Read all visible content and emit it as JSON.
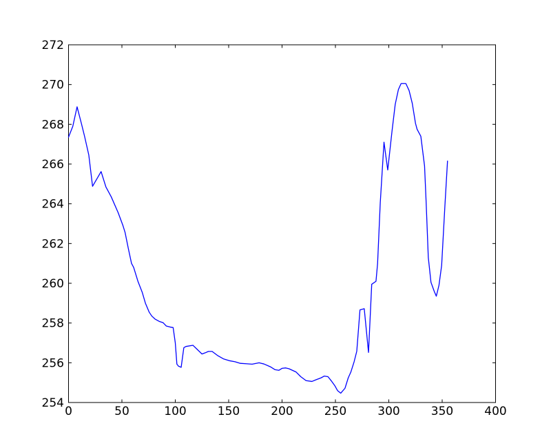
{
  "figure": {
    "background": "#ffffff",
    "frame_color": "#000000",
    "tick_color": "#000000",
    "label_color": "#000000"
  },
  "chart_data": {
    "type": "line",
    "title": "",
    "xlabel": "",
    "ylabel": "",
    "grid": false,
    "legend": null,
    "xlim": [
      0,
      400
    ],
    "ylim": [
      254,
      272
    ],
    "xticks": [
      0,
      50,
      100,
      150,
      200,
      250,
      300,
      350,
      400
    ],
    "yticks": [
      254,
      256,
      258,
      260,
      262,
      264,
      266,
      268,
      270,
      272
    ],
    "series": [
      {
        "name": "series-1",
        "color": "#0000ff",
        "points": [
          [
            0,
            267.35
          ],
          [
            4,
            267.9
          ],
          [
            8,
            268.88
          ],
          [
            12,
            268.05
          ],
          [
            15,
            267.4
          ],
          [
            19,
            266.45
          ],
          [
            22.5,
            264.88
          ],
          [
            30.5,
            265.62
          ],
          [
            35,
            264.85
          ],
          [
            40,
            264.35
          ],
          [
            46.5,
            263.55
          ],
          [
            51,
            262.9
          ],
          [
            53,
            262.55
          ],
          [
            56,
            261.75
          ],
          [
            59,
            261.0
          ],
          [
            61,
            260.8
          ],
          [
            65,
            260.1
          ],
          [
            69,
            259.55
          ],
          [
            72,
            259.0
          ],
          [
            75.5,
            258.55
          ],
          [
            78,
            258.35
          ],
          [
            81,
            258.2
          ],
          [
            85,
            258.08
          ],
          [
            88.5,
            258.02
          ],
          [
            91.5,
            257.85
          ],
          [
            95,
            257.8
          ],
          [
            98,
            257.77
          ],
          [
            100,
            257.0
          ],
          [
            101.5,
            255.93
          ],
          [
            103,
            255.83
          ],
          [
            105.5,
            255.77
          ],
          [
            108,
            256.76
          ],
          [
            110,
            256.82
          ],
          [
            116.5,
            256.88
          ],
          [
            120,
            256.7
          ],
          [
            125,
            256.44
          ],
          [
            128,
            256.5
          ],
          [
            131,
            256.57
          ],
          [
            134.5,
            256.57
          ],
          [
            140,
            256.35
          ],
          [
            145,
            256.2
          ],
          [
            151,
            256.1
          ],
          [
            156,
            256.05
          ],
          [
            161,
            255.97
          ],
          [
            166.5,
            255.95
          ],
          [
            172,
            255.93
          ],
          [
            178.5,
            256.0
          ],
          [
            183,
            255.94
          ],
          [
            189,
            255.8
          ],
          [
            193.5,
            255.65
          ],
          [
            197,
            255.62
          ],
          [
            200,
            255.72
          ],
          [
            203.5,
            255.74
          ],
          [
            206.5,
            255.7
          ],
          [
            213,
            255.54
          ],
          [
            217.5,
            255.3
          ],
          [
            222.5,
            255.1
          ],
          [
            228,
            255.06
          ],
          [
            232,
            255.15
          ],
          [
            236.5,
            255.24
          ],
          [
            239.5,
            255.33
          ],
          [
            243,
            255.3
          ],
          [
            246,
            255.1
          ],
          [
            249.5,
            254.84
          ],
          [
            252,
            254.6
          ],
          [
            255,
            254.47
          ],
          [
            259,
            254.72
          ],
          [
            262,
            255.24
          ],
          [
            264.5,
            255.54
          ],
          [
            267.5,
            256.05
          ],
          [
            270,
            256.58
          ],
          [
            273,
            258.66
          ],
          [
            277,
            258.72
          ],
          [
            281,
            256.52
          ],
          [
            284,
            259.95
          ],
          [
            288,
            260.1
          ],
          [
            289.5,
            261.0
          ],
          [
            292,
            264.05
          ],
          [
            295.5,
            267.1
          ],
          [
            299,
            265.7
          ],
          [
            303,
            267.65
          ],
          [
            306,
            269.0
          ],
          [
            309,
            269.75
          ],
          [
            311.5,
            270.05
          ],
          [
            316,
            270.05
          ],
          [
            319,
            269.7
          ],
          [
            322,
            269.05
          ],
          [
            325,
            268.05
          ],
          [
            326.5,
            267.75
          ],
          [
            330,
            267.4
          ],
          [
            333.5,
            265.9
          ],
          [
            335,
            264.05
          ],
          [
            337,
            261.3
          ],
          [
            339.5,
            260.05
          ],
          [
            342.5,
            259.6
          ],
          [
            344.5,
            259.35
          ],
          [
            347,
            259.9
          ],
          [
            349.5,
            260.9
          ],
          [
            352.5,
            263.85
          ],
          [
            355,
            266.15
          ]
        ]
      }
    ]
  }
}
